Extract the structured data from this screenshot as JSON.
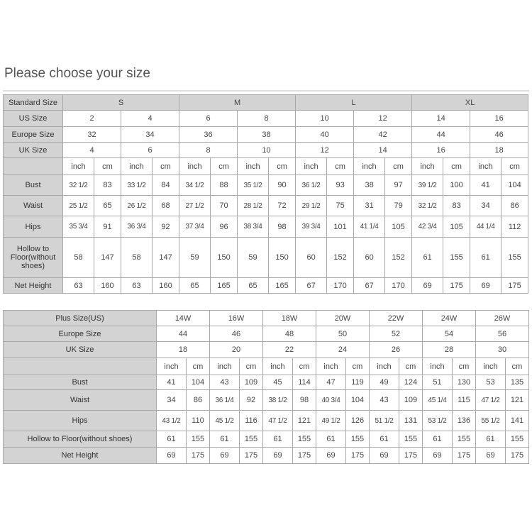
{
  "title": "Please choose your size",
  "standard_table": {
    "labels": {
      "standard": "Standard Size",
      "us": "US Size",
      "europe": "Europe Size",
      "uk": "UK Size",
      "bust": "Bust",
      "waist": "Waist",
      "hips": "Hips",
      "hollow": "Hollow to Floor(without shoes)",
      "net_height": "Net Height"
    },
    "standard_sizes": [
      "S",
      "M",
      "L",
      "XL"
    ],
    "us_sizes": [
      "2",
      "4",
      "6",
      "8",
      "10",
      "12",
      "14",
      "16"
    ],
    "europe_sizes": [
      "32",
      "34",
      "36",
      "38",
      "40",
      "42",
      "44",
      "46"
    ],
    "uk_sizes": [
      "4",
      "6",
      "8",
      "10",
      "12",
      "14",
      "16",
      "18"
    ],
    "units": [
      "inch",
      "cm"
    ],
    "bust": [
      "32 1/2",
      "83",
      "33 1/2",
      "84",
      "34 1/2",
      "88",
      "35 1/2",
      "90",
      "36 1/2",
      "93",
      "38",
      "97",
      "39 1/2",
      "100",
      "41",
      "104"
    ],
    "waist": [
      "25 1/2",
      "65",
      "26 1/2",
      "68",
      "27 1/2",
      "70",
      "28 1/2",
      "72",
      "29 1/2",
      "75",
      "31",
      "79",
      "32 1/2",
      "83",
      "34",
      "86"
    ],
    "hips": [
      "35 3/4",
      "91",
      "36 3/4",
      "92",
      "37 3/4",
      "96",
      "38 3/4",
      "98",
      "39 3/4",
      "101",
      "41 1/4",
      "105",
      "42 3/4",
      "105",
      "44 1/4",
      "112"
    ],
    "hollow": [
      "58",
      "147",
      "58",
      "147",
      "59",
      "150",
      "59",
      "150",
      "60",
      "152",
      "60",
      "152",
      "61",
      "155",
      "61",
      "155"
    ],
    "net_height": [
      "63",
      "160",
      "63",
      "160",
      "65",
      "165",
      "65",
      "165",
      "67",
      "170",
      "67",
      "170",
      "69",
      "175",
      "69",
      "175"
    ]
  },
  "plus_table": {
    "labels": {
      "plus": "Plus Size(US)",
      "europe": "Europe Size",
      "uk": "UK Size",
      "bust": "Bust",
      "waist": "Waist",
      "hips": "Hips",
      "hollow": "Hollow to Floor(without shoes)",
      "net_height": "Net Height"
    },
    "plus_sizes": [
      "14W",
      "16W",
      "18W",
      "20W",
      "22W",
      "24W",
      "26W"
    ],
    "europe_sizes": [
      "44",
      "46",
      "48",
      "50",
      "52",
      "54",
      "56"
    ],
    "uk_sizes": [
      "18",
      "20",
      "22",
      "24",
      "26",
      "28",
      "30"
    ],
    "units": [
      "inch",
      "cm"
    ],
    "bust": [
      "41",
      "104",
      "43",
      "109",
      "45",
      "114",
      "47",
      "119",
      "49",
      "124",
      "51",
      "130",
      "53",
      "135"
    ],
    "waist": [
      "34",
      "86",
      "36 1/4",
      "92",
      "38 1/2",
      "98",
      "40 3/4",
      "104",
      "43",
      "109",
      "45 1/4",
      "115",
      "47 1/2",
      "121"
    ],
    "hips": [
      "43 1/2",
      "110",
      "45 1/2",
      "116",
      "47 1/2",
      "121",
      "49 1/2",
      "126",
      "51 1/2",
      "131",
      "53 1/2",
      "136",
      "55 1/2",
      "141"
    ],
    "hollow": [
      "61",
      "155",
      "61",
      "155",
      "61",
      "155",
      "61",
      "155",
      "61",
      "155",
      "61",
      "155",
      "61",
      "155"
    ],
    "net_height": [
      "69",
      "175",
      "69",
      "175",
      "69",
      "175",
      "69",
      "175",
      "69",
      "175",
      "69",
      "175",
      "69",
      "175"
    ]
  }
}
